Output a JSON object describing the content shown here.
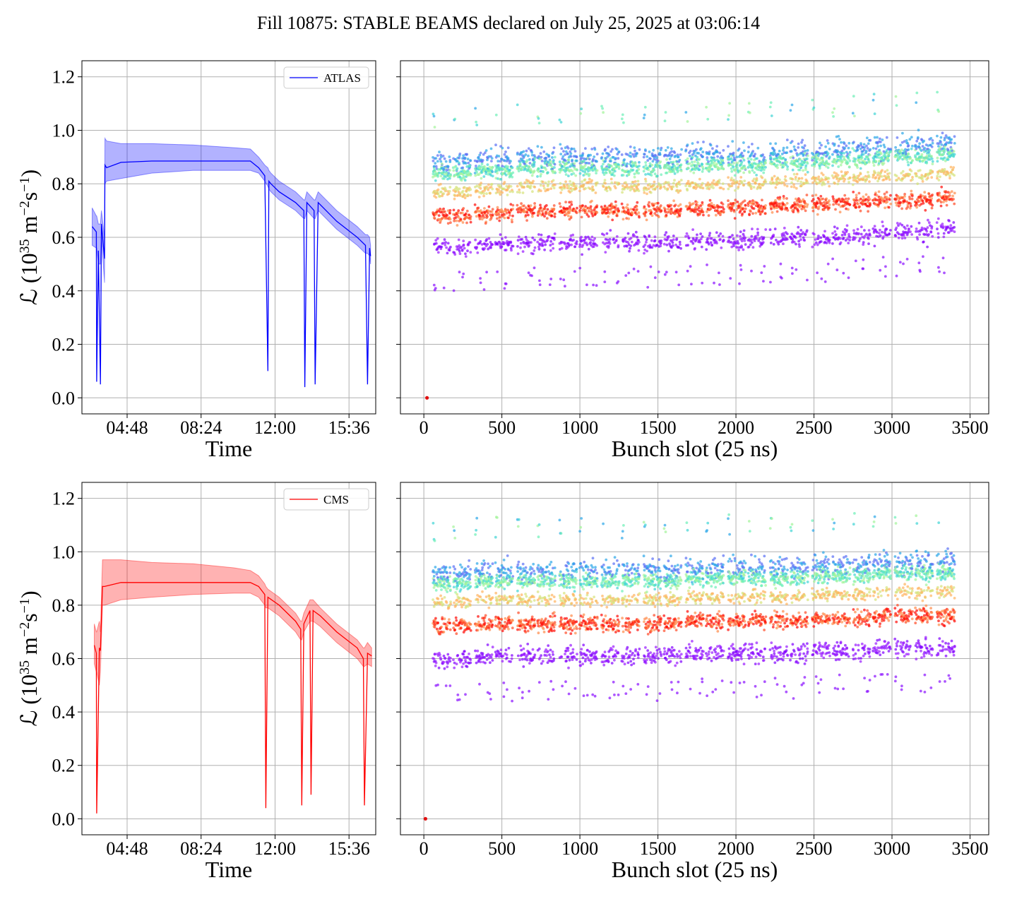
{
  "figure_title": "Fill 10875: STABLE BEAMS declared on July 25, 2025 at 03:06:14",
  "chart_data": [
    {
      "id": "atlas-time",
      "type": "line",
      "series": [
        {
          "name": "ATLAS",
          "color": "#0000ff",
          "band_color": "#0000ff"
        }
      ],
      "xlabel": "Time",
      "ylabel": "ℒ (10^35 m^-2s^-1)",
      "x_ticks": [
        "04:48",
        "08:24",
        "12:00",
        "15:36"
      ],
      "x_tick_hours": [
        4.8,
        8.4,
        12.0,
        15.6
      ],
      "xlim_hours": [
        2.6,
        16.9
      ],
      "ylim": [
        -0.06,
        1.26
      ],
      "y_ticks": [
        "0.0",
        "0.2",
        "0.4",
        "0.6",
        "0.8",
        "1.0",
        "1.2"
      ],
      "legend_position": "top-right",
      "grid": true,
      "x_hours": [
        3.1,
        3.3,
        3.32,
        3.4,
        3.5,
        3.55,
        3.7,
        3.72,
        3.8,
        4.5,
        6.0,
        8.0,
        10.0,
        10.8,
        11.2,
        11.5,
        11.65,
        11.7,
        11.8,
        12.2,
        13.0,
        13.4,
        13.45,
        13.55,
        13.9,
        13.95,
        14.1,
        15.0,
        16.0,
        16.4,
        16.5,
        16.6,
        16.65
      ],
      "y_center": [
        0.64,
        0.62,
        0.06,
        0.55,
        0.05,
        0.65,
        0.52,
        0.87,
        0.86,
        0.88,
        0.885,
        0.885,
        0.885,
        0.885,
        0.86,
        0.83,
        0.1,
        0.81,
        0.8,
        0.77,
        0.73,
        0.7,
        0.04,
        0.73,
        0.7,
        0.05,
        0.73,
        0.66,
        0.6,
        0.57,
        0.05,
        0.56,
        0.53
      ],
      "y_upper": [
        0.71,
        0.68,
        0.68,
        0.65,
        0.65,
        0.7,
        0.6,
        0.97,
        0.96,
        0.95,
        0.95,
        0.945,
        0.935,
        0.93,
        0.9,
        0.87,
        0.86,
        0.85,
        0.84,
        0.81,
        0.77,
        0.74,
        0.74,
        0.77,
        0.74,
        0.74,
        0.77,
        0.7,
        0.64,
        0.61,
        0.61,
        0.6,
        0.57
      ],
      "y_lower": [
        0.57,
        0.56,
        0.56,
        0.5,
        0.5,
        0.6,
        0.43,
        0.8,
        0.81,
        0.82,
        0.84,
        0.85,
        0.85,
        0.85,
        0.84,
        0.81,
        0.79,
        0.78,
        0.77,
        0.74,
        0.7,
        0.67,
        0.67,
        0.7,
        0.67,
        0.67,
        0.7,
        0.63,
        0.57,
        0.54,
        0.54,
        0.53,
        0.5
      ]
    },
    {
      "id": "atlas-bunch",
      "type": "scatter",
      "xlabel": "Bunch slot (25 ns)",
      "x_ticks": [
        "0",
        "500",
        "1000",
        "1500",
        "2000",
        "2500",
        "3000",
        "3500"
      ],
      "xlim": [
        -150,
        3620
      ],
      "ylim": [
        -0.06,
        1.26
      ],
      "grid": true,
      "colormap": "rainbow",
      "trains_start": [
        60,
        190,
        330,
        460,
        600,
        730,
        870,
        1000,
        1140,
        1270,
        1410,
        1540,
        1680,
        1810,
        1950,
        2080,
        2220,
        2350,
        2490,
        2620,
        2750,
        2880,
        3020,
        3150,
        3290
      ],
      "train_length": 110,
      "median_level": [
        0.72,
        0.72,
        0.73,
        0.73,
        0.74,
        0.74,
        0.74,
        0.74,
        0.74,
        0.74,
        0.74,
        0.74,
        0.75,
        0.75,
        0.75,
        0.75,
        0.76,
        0.76,
        0.76,
        0.77,
        0.77,
        0.78,
        0.78,
        0.78,
        0.79
      ],
      "outlier_point": {
        "x": 20,
        "y": 0.0
      }
    },
    {
      "id": "cms-time",
      "type": "line",
      "series": [
        {
          "name": "CMS",
          "color": "#ff0000",
          "band_color": "#ff0000"
        }
      ],
      "xlabel": "Time",
      "ylabel": "ℒ (10^35 m^-2s^-1)",
      "x_ticks": [
        "04:48",
        "08:24",
        "12:00",
        "15:36"
      ],
      "x_tick_hours": [
        4.8,
        8.4,
        12.0,
        15.6
      ],
      "xlim_hours": [
        2.6,
        16.9
      ],
      "ylim": [
        -0.06,
        1.26
      ],
      "y_ticks": [
        "0.0",
        "0.2",
        "0.4",
        "0.6",
        "0.8",
        "1.0",
        "1.2"
      ],
      "legend_position": "top-right",
      "grid": true,
      "x_hours": [
        3.2,
        3.3,
        3.32,
        3.45,
        3.5,
        3.6,
        3.7,
        4.5,
        6.0,
        8.0,
        10.0,
        10.8,
        11.2,
        11.5,
        11.55,
        11.65,
        12.2,
        13.0,
        13.25,
        13.3,
        13.4,
        13.7,
        13.75,
        13.85,
        14.2,
        15.0,
        16.0,
        16.3,
        16.35,
        16.5,
        16.7
      ],
      "y_center": [
        0.65,
        0.62,
        0.02,
        0.64,
        0.63,
        0.87,
        0.87,
        0.885,
        0.885,
        0.885,
        0.885,
        0.885,
        0.87,
        0.84,
        0.04,
        0.83,
        0.8,
        0.74,
        0.71,
        0.05,
        0.73,
        0.78,
        0.09,
        0.78,
        0.76,
        0.7,
        0.64,
        0.6,
        0.05,
        0.62,
        0.61
      ],
      "y_upper": [
        0.73,
        0.7,
        0.7,
        0.74,
        0.7,
        0.97,
        0.97,
        0.97,
        0.96,
        0.955,
        0.94,
        0.93,
        0.91,
        0.88,
        0.87,
        0.86,
        0.83,
        0.77,
        0.74,
        0.74,
        0.77,
        0.82,
        0.82,
        0.82,
        0.79,
        0.73,
        0.67,
        0.64,
        0.64,
        0.66,
        0.64
      ],
      "y_lower": [
        0.58,
        0.55,
        0.55,
        0.5,
        0.55,
        0.8,
        0.8,
        0.82,
        0.83,
        0.84,
        0.845,
        0.845,
        0.83,
        0.8,
        0.79,
        0.79,
        0.76,
        0.7,
        0.67,
        0.67,
        0.7,
        0.74,
        0.74,
        0.74,
        0.72,
        0.66,
        0.6,
        0.57,
        0.57,
        0.58,
        0.57
      ]
    },
    {
      "id": "cms-bunch",
      "type": "scatter",
      "xlabel": "Bunch slot (25 ns)",
      "x_ticks": [
        "0",
        "500",
        "1000",
        "1500",
        "2000",
        "2500",
        "3000",
        "3500"
      ],
      "xlim": [
        -150,
        3620
      ],
      "ylim": [
        -0.06,
        1.26
      ],
      "grid": true,
      "colormap": "rainbow",
      "trains_start": [
        60,
        190,
        330,
        460,
        600,
        730,
        870,
        1000,
        1140,
        1270,
        1410,
        1540,
        1680,
        1810,
        1950,
        2080,
        2220,
        2350,
        2490,
        2620,
        2750,
        2880,
        3020,
        3150,
        3290
      ],
      "train_length": 110,
      "median_level": [
        0.76,
        0.76,
        0.77,
        0.77,
        0.77,
        0.77,
        0.77,
        0.77,
        0.77,
        0.77,
        0.77,
        0.77,
        0.78,
        0.78,
        0.78,
        0.78,
        0.78,
        0.78,
        0.79,
        0.79,
        0.79,
        0.8,
        0.8,
        0.8,
        0.8
      ],
      "outlier_point": {
        "x": 10,
        "y": 0.0
      }
    }
  ]
}
